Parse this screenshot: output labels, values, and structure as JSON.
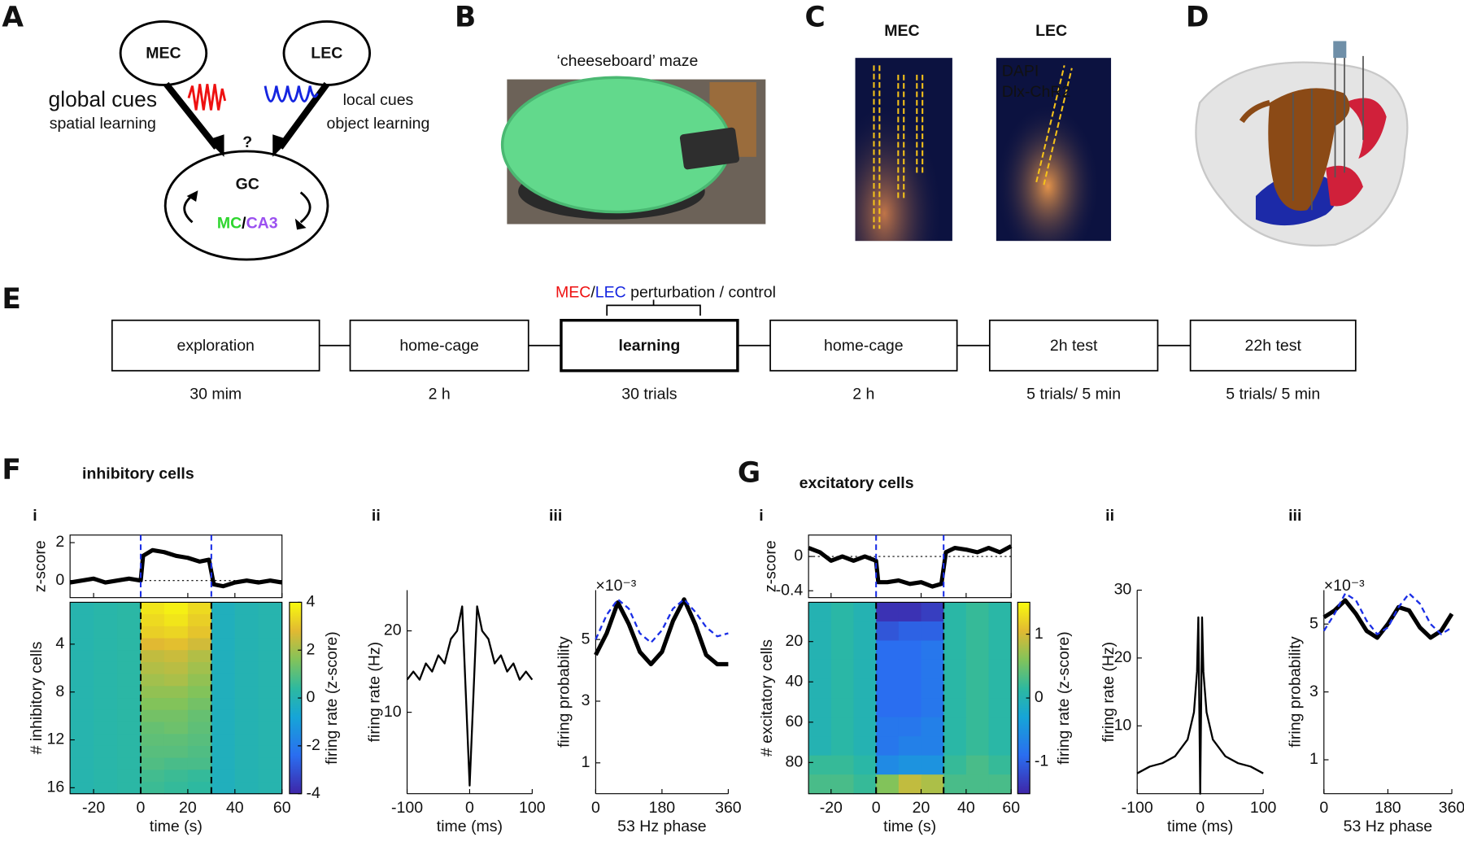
{
  "panel_a": {
    "letter": "A",
    "mec": "MEC",
    "lec": "LEC",
    "mec_cues": "global cues",
    "mec_learning": "spatial learning",
    "lec_cues": "local cues",
    "lec_learning": "object learning",
    "question": "?",
    "gc": "GC",
    "mc": "MC",
    "slash": "/",
    "ca3": "CA3"
  },
  "panel_b": {
    "letter": "B",
    "caption": "‘cheeseboard’ maze"
  },
  "panel_c": {
    "letter": "C",
    "left_title": "MEC",
    "right_title": "LEC",
    "stain_1": "DAPI",
    "stain_2": "Dlx-ChR2"
  },
  "panel_d": {
    "letter": "D"
  },
  "panel_e": {
    "letter": "E",
    "perturb_mec": "MEC",
    "perturb_slash": "/",
    "perturb_lec": "LEC",
    "perturb_text": " perturbation / control",
    "stages": [
      {
        "name": "exploration",
        "duration": "30 mim"
      },
      {
        "name": "home-cage",
        "duration": "2 h"
      },
      {
        "name": "learning",
        "duration": "30 trials"
      },
      {
        "name": "home-cage",
        "duration": "2 h"
      },
      {
        "name": "2h test",
        "duration": "5 trials/ 5 min"
      },
      {
        "name": "22h test",
        "duration": "5 trials/ 5 min"
      }
    ]
  },
  "panel_f": {
    "letter": "F",
    "title": "inhibitory cells",
    "i": {
      "label": "i",
      "events": [
        0,
        30
      ],
      "zscore": {
        "ylabel": "z-score",
        "ylim": [
          -0.9,
          2.4
        ],
        "yticks": [
          0,
          2
        ],
        "x": [
          -30,
          -25,
          -20,
          -15,
          -10,
          -5,
          0,
          1,
          5,
          10,
          15,
          20,
          25,
          29,
          31,
          35,
          40,
          45,
          50,
          55,
          60
        ],
        "values": [
          -0.1,
          0,
          0.1,
          -0.1,
          0,
          0.1,
          0,
          1.3,
          1.6,
          1.5,
          1.3,
          1.2,
          1.0,
          1.1,
          -0.2,
          -0.3,
          -0.1,
          0,
          -0.1,
          0,
          -0.1
        ]
      },
      "heatmap": {
        "xlabel": "time (s)",
        "ylabel": "# inhibitory cells",
        "xlim": [
          -30,
          60
        ],
        "ylim": [
          0.5,
          16.5
        ],
        "xticks": [
          -20,
          0,
          20,
          40,
          60
        ],
        "yticks": [
          4,
          8,
          12,
          16
        ],
        "clim": [
          -4,
          4
        ],
        "cticks": [
          -4,
          -2,
          0,
          2,
          4
        ],
        "clabel": "firing rate (z-score)",
        "rows": [
          [
            0.1,
            0.2,
            0.3,
            3.6,
            3.8,
            3.4,
            -0.2,
            0,
            0.1
          ],
          [
            0.1,
            0.2,
            0.3,
            3.4,
            3.6,
            3.2,
            -0.2,
            0,
            0.1
          ],
          [
            0.1,
            0.2,
            0.3,
            3.2,
            3.3,
            3.0,
            -0.2,
            0,
            0.1
          ],
          [
            0.1,
            0.2,
            0.3,
            2.8,
            2.9,
            2.6,
            -0.2,
            0,
            0.1
          ],
          [
            0.1,
            0.2,
            0.3,
            2.4,
            2.5,
            2.2,
            -0.2,
            0,
            0.1
          ],
          [
            0.1,
            0.2,
            0.3,
            2.2,
            2.3,
            2.0,
            -0.2,
            0,
            0.1
          ],
          [
            0.1,
            0.2,
            0.3,
            2.0,
            2.1,
            1.8,
            -0.2,
            0,
            0.1
          ],
          [
            0.1,
            0.2,
            0.3,
            1.8,
            1.8,
            1.6,
            -0.2,
            0,
            0.1
          ],
          [
            0.1,
            0.2,
            0.3,
            1.6,
            1.6,
            1.4,
            -0.2,
            0,
            0.1
          ],
          [
            0.1,
            0.2,
            0.3,
            1.4,
            1.4,
            1.2,
            -0.2,
            0,
            0.1
          ],
          [
            0.1,
            0.2,
            0.3,
            1.2,
            1.3,
            1.1,
            -0.2,
            0,
            0.1
          ],
          [
            0.1,
            0.2,
            0.3,
            1.1,
            1.1,
            1.0,
            -0.2,
            0,
            0.1
          ],
          [
            0.1,
            0.2,
            0.3,
            1.0,
            1.0,
            0.9,
            -0.2,
            0,
            0.1
          ],
          [
            0.1,
            0.2,
            0.3,
            0.9,
            0.8,
            0.8,
            -0.2,
            0,
            0.1
          ],
          [
            0.1,
            0.2,
            0.3,
            0.7,
            0.6,
            0.5,
            -0.2,
            0,
            0.1
          ],
          [
            0.1,
            0.2,
            0.3,
            0.6,
            0.5,
            0.4,
            -0.2,
            0,
            0.1
          ]
        ]
      }
    },
    "ii": {
      "label": "ii",
      "xlabel": "time (ms)",
      "ylabel": "firing rate (Hz)",
      "xlim": [
        -100,
        100
      ],
      "ylim": [
        0,
        25
      ],
      "xticks": [
        -100,
        0,
        100
      ],
      "yticks": [
        10,
        20
      ],
      "x": [
        -100,
        -90,
        -80,
        -70,
        -60,
        -50,
        -40,
        -30,
        -20,
        -12,
        -6,
        0,
        6,
        12,
        20,
        30,
        40,
        50,
        60,
        70,
        80,
        90,
        100
      ],
      "series": [
        {
          "color": "#000000",
          "style": "solid",
          "weight": "normal",
          "values": [
            14,
            15,
            14,
            16,
            15,
            17,
            16,
            19,
            20,
            23,
            12,
            1,
            12,
            23,
            20,
            19,
            16,
            17,
            15,
            16,
            14,
            15,
            14
          ]
        }
      ]
    },
    "iii": {
      "label": "iii",
      "exponent": "×10⁻³",
      "xlabel": "53 Hz phase",
      "ylabel": "firing probability",
      "xlim": [
        0,
        360
      ],
      "ylim": [
        0,
        6.6
      ],
      "xticks": [
        0,
        180,
        360
      ],
      "yticks": [
        1,
        3,
        5
      ],
      "x": [
        0,
        30,
        60,
        90,
        120,
        150,
        180,
        210,
        240,
        270,
        300,
        330,
        360
      ],
      "series": [
        {
          "color": "#000000",
          "style": "solid",
          "weight": "bold",
          "values": [
            4.5,
            5.2,
            6.2,
            5.5,
            4.6,
            4.2,
            4.6,
            5.6,
            6.3,
            5.5,
            4.5,
            4.2,
            4.2
          ]
        },
        {
          "color": "#1a2ee6",
          "style": "dashed",
          "weight": "normal",
          "values": [
            5.0,
            5.8,
            6.3,
            6.0,
            5.2,
            4.9,
            5.3,
            6.0,
            6.3,
            5.9,
            5.4,
            5.1,
            5.2
          ]
        }
      ]
    }
  },
  "panel_g": {
    "letter": "G",
    "title": "excitatory cells",
    "i": {
      "label": "i",
      "events": [
        0,
        30
      ],
      "zscore": {
        "ylabel": "z-score",
        "ylim": [
          -0.48,
          0.25
        ],
        "yticks": [
          -0.4,
          0
        ],
        "x": [
          -30,
          -25,
          -20,
          -15,
          -10,
          -5,
          0,
          1,
          5,
          10,
          15,
          20,
          25,
          29,
          31,
          35,
          40,
          45,
          50,
          55,
          60
        ],
        "values": [
          0.1,
          0.05,
          -0.05,
          0,
          -0.05,
          0,
          -0.05,
          -0.3,
          -0.3,
          -0.28,
          -0.32,
          -0.3,
          -0.35,
          -0.32,
          0.05,
          0.1,
          0.08,
          0.05,
          0.1,
          0.05,
          0.12
        ]
      },
      "heatmap": {
        "xlabel": "time (s)",
        "ylabel": "# excitatory cells",
        "xlim": [
          -30,
          60
        ],
        "ylim": [
          0.5,
          95.5
        ],
        "xticks": [
          -20,
          0,
          20,
          40,
          60
        ],
        "yticks": [
          20,
          40,
          60,
          80
        ],
        "clim": [
          -1.5,
          1.5
        ],
        "cticks": [
          -1,
          0,
          1
        ],
        "clabel": "firing rate (z-score)",
        "rows": [
          [
            0,
            0.1,
            0,
            -1.4,
            -1.4,
            -1.3,
            0.1,
            0.2,
            0.1
          ],
          [
            0,
            0.1,
            0,
            -1.1,
            -1.0,
            -1.0,
            0.1,
            0.2,
            0.1
          ],
          [
            0,
            0.1,
            0,
            -0.9,
            -0.9,
            -0.8,
            0.1,
            0.2,
            0.1
          ],
          [
            0,
            0.1,
            0,
            -0.9,
            -0.9,
            -0.8,
            0.1,
            0.2,
            0.1
          ],
          [
            0,
            0.1,
            0,
            -0.9,
            -0.9,
            -0.8,
            0.1,
            0.2,
            0.1
          ],
          [
            0,
            0.1,
            0,
            -0.9,
            -0.9,
            -0.8,
            0.1,
            0.2,
            0.1
          ],
          [
            0,
            0.1,
            0,
            -0.8,
            -0.8,
            -0.7,
            0.1,
            0.2,
            0.1
          ],
          [
            0,
            0.1,
            0,
            -0.8,
            -0.7,
            -0.7,
            0.1,
            0.2,
            0.1
          ],
          [
            0.2,
            0.2,
            0.1,
            -0.6,
            -0.5,
            -0.5,
            0.2,
            0.3,
            0.2
          ],
          [
            0.3,
            0.3,
            0.2,
            0.6,
            0.9,
            0.8,
            0.3,
            0.3,
            0.3
          ]
        ]
      }
    },
    "ii": {
      "label": "ii",
      "xlabel": "time (ms)",
      "ylabel": "firing rate (Hz)",
      "xlim": [
        -100,
        100
      ],
      "ylim": [
        0,
        30
      ],
      "xticks": [
        -100,
        0,
        100
      ],
      "yticks": [
        10,
        20,
        30
      ],
      "x": [
        -100,
        -80,
        -60,
        -40,
        -20,
        -10,
        -5,
        -3,
        0,
        3,
        5,
        10,
        20,
        40,
        60,
        80,
        100
      ],
      "series": [
        {
          "color": "#000000",
          "style": "solid",
          "weight": "normal",
          "values": [
            3,
            4,
            4.5,
            5.5,
            8,
            12,
            18,
            26,
            0,
            26,
            18,
            12,
            8,
            5.5,
            4.5,
            4,
            3
          ]
        }
      ]
    },
    "iii": {
      "label": "iii",
      "exponent": "×10⁻³",
      "xlabel": "53 Hz phase",
      "ylabel": "firing probability",
      "xlim": [
        0,
        360
      ],
      "ylim": [
        0,
        6
      ],
      "xticks": [
        0,
        180,
        360
      ],
      "yticks": [
        1,
        3,
        5
      ],
      "x": [
        0,
        30,
        60,
        90,
        120,
        150,
        180,
        210,
        240,
        270,
        300,
        330,
        360
      ],
      "series": [
        {
          "color": "#000000",
          "style": "solid",
          "weight": "bold",
          "values": [
            5.2,
            5.4,
            5.7,
            5.3,
            4.8,
            4.6,
            5.0,
            5.5,
            5.4,
            4.9,
            4.6,
            4.8,
            5.3
          ]
        },
        {
          "color": "#1a2ee6",
          "style": "dashed",
          "weight": "normal",
          "values": [
            4.8,
            5.3,
            5.9,
            5.7,
            5.1,
            4.7,
            4.9,
            5.5,
            5.9,
            5.6,
            5.0,
            4.7,
            4.9
          ]
        }
      ]
    }
  }
}
